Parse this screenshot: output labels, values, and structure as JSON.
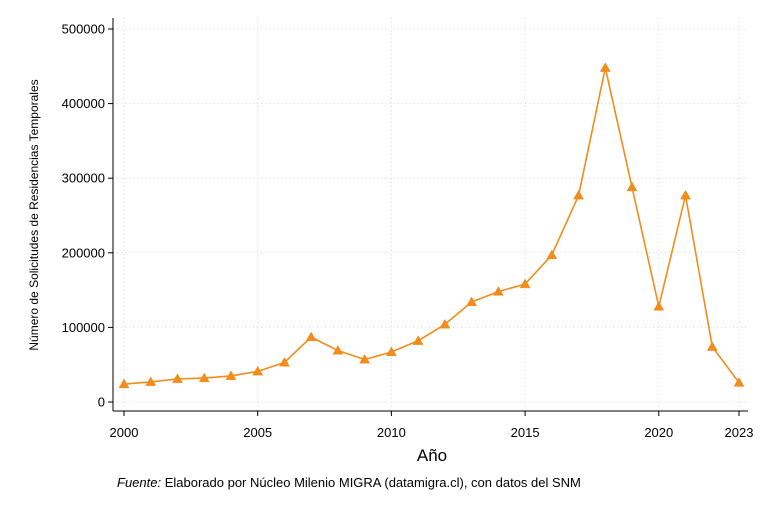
{
  "chart_data": {
    "type": "line",
    "xlabel": "Año",
    "ylabel": "Número de Solicitudes de Residencias Temporales",
    "x": [
      2000,
      2001,
      2002,
      2003,
      2004,
      2005,
      2006,
      2007,
      2008,
      2009,
      2010,
      2011,
      2012,
      2013,
      2014,
      2015,
      2016,
      2017,
      2018,
      2019,
      2020,
      2021,
      2022,
      2023
    ],
    "series": [
      {
        "values": [
          24000,
          27000,
          31000,
          32000,
          35000,
          41000,
          53000,
          87000,
          69000,
          57000,
          67000,
          82000,
          104000,
          134000,
          148000,
          158000,
          197000,
          277000,
          448000,
          288000,
          128000,
          277000,
          74000,
          26000
        ]
      }
    ],
    "xlim": [
      2000,
      2023
    ],
    "ylim": [
      0,
      500000
    ],
    "xticks": [
      "2000",
      "2005",
      "2010",
      "2015",
      "2020",
      "2023"
    ],
    "yticks": [
      "0",
      "100000",
      "200000",
      "300000",
      "400000",
      "500000"
    ],
    "grid": true,
    "marker": "triangle",
    "line_color": "#F28C1C"
  },
  "source": {
    "label": "Fuente:",
    "text": " Elaborado por Núcleo Milenio MIGRA (datamigra.cl), con datos del SNM"
  }
}
